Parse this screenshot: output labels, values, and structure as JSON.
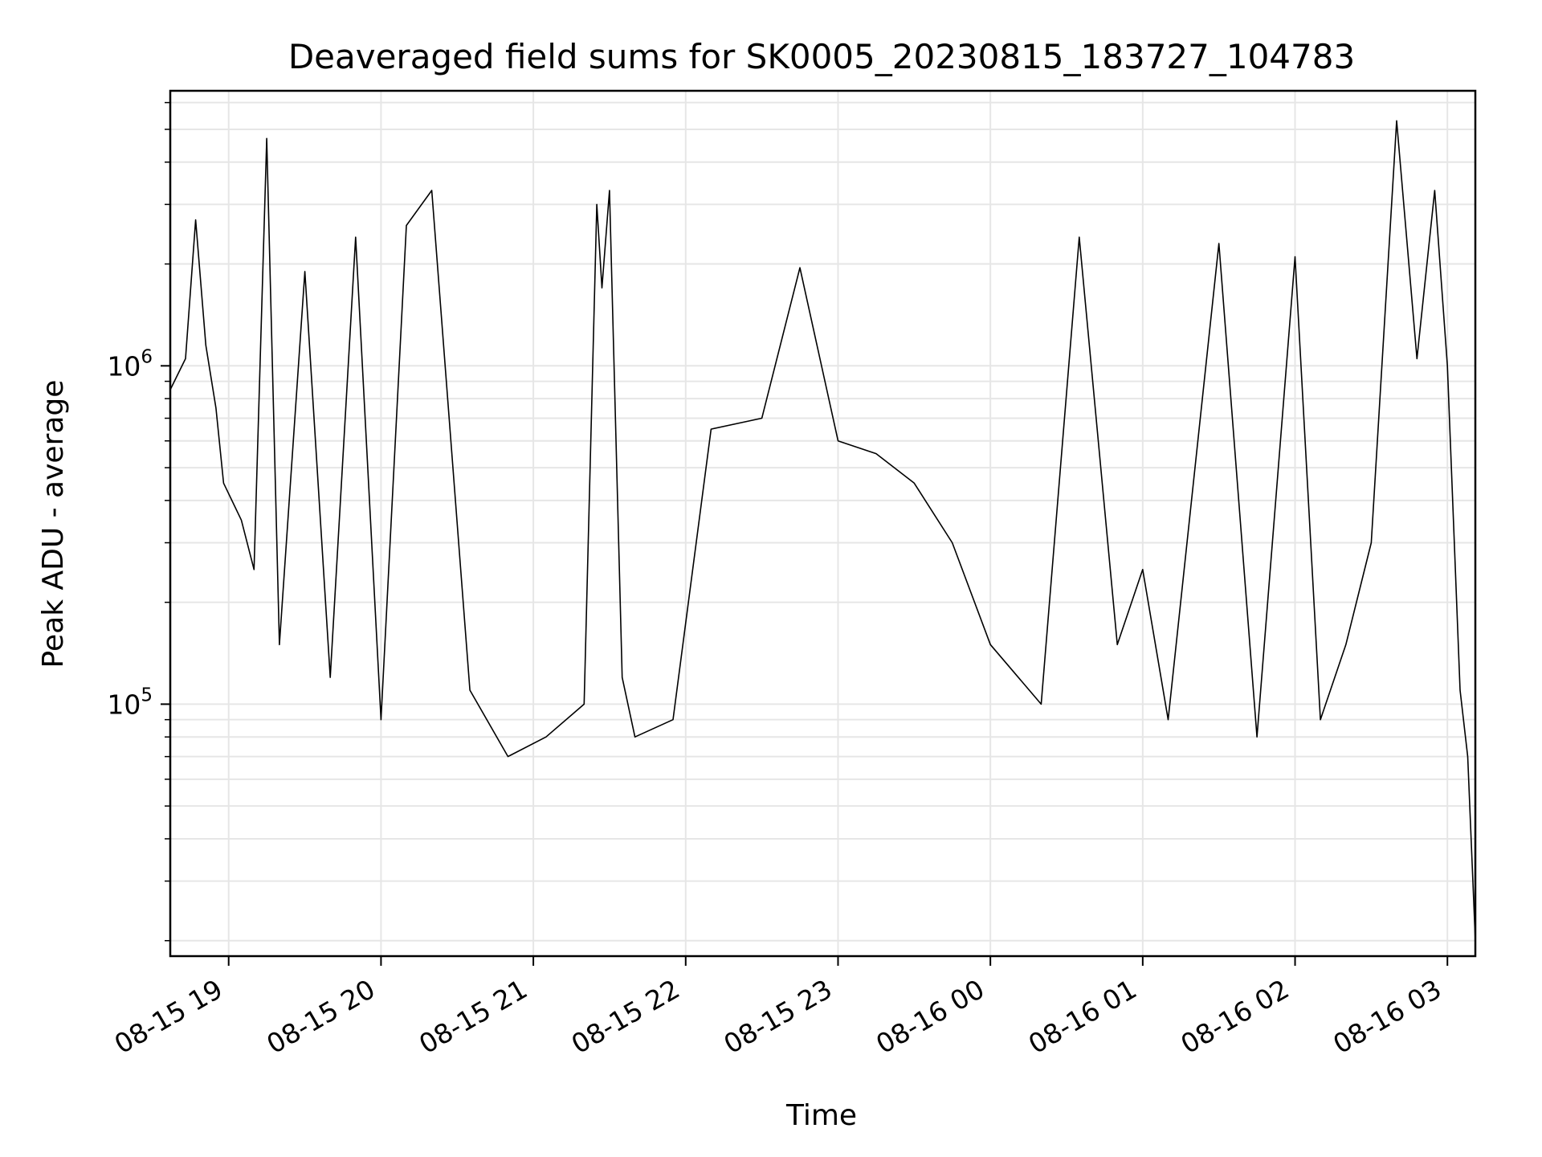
{
  "chart_data": {
    "type": "line",
    "title": "Deaveraged field sums for SK0005_20230815_183727_104783",
    "xlabel": "Time",
    "ylabel": "Peak ADU - average",
    "y_scale": "log",
    "ylim": [
      18000,
      6500000
    ],
    "x_range": [
      "2023-08-15 18:37",
      "2023-08-16 03:11"
    ],
    "x_ticks": [
      {
        "label": "08-15 19",
        "t": "2023-08-15 19:00"
      },
      {
        "label": "08-15 20",
        "t": "2023-08-15 20:00"
      },
      {
        "label": "08-15 21",
        "t": "2023-08-15 21:00"
      },
      {
        "label": "08-15 22",
        "t": "2023-08-15 22:00"
      },
      {
        "label": "08-15 23",
        "t": "2023-08-15 23:00"
      },
      {
        "label": "08-16 00",
        "t": "2023-08-16 00:00"
      },
      {
        "label": "08-16 01",
        "t": "2023-08-16 01:00"
      },
      {
        "label": "08-16 02",
        "t": "2023-08-16 02:00"
      },
      {
        "label": "08-16 03",
        "t": "2023-08-16 03:00"
      }
    ],
    "y_ticks": [
      {
        "base": "10",
        "exp": "5",
        "value": 100000
      },
      {
        "base": "10",
        "exp": "6",
        "value": 1000000
      }
    ],
    "grid": true,
    "line_color": "#000000",
    "series": [
      {
        "points": [
          [
            "2023-08-15 18:37",
            850000
          ],
          [
            "2023-08-15 18:43",
            1050000
          ],
          [
            "2023-08-15 18:47",
            2700000
          ],
          [
            "2023-08-15 18:51",
            1150000
          ],
          [
            "2023-08-15 18:55",
            750000
          ],
          [
            "2023-08-15 18:58",
            450000
          ],
          [
            "2023-08-15 19:05",
            350000
          ],
          [
            "2023-08-15 19:10",
            250000
          ],
          [
            "2023-08-15 19:15",
            4700000
          ],
          [
            "2023-08-15 19:20",
            150000
          ],
          [
            "2023-08-15 19:30",
            1900000
          ],
          [
            "2023-08-15 19:40",
            120000
          ],
          [
            "2023-08-15 19:50",
            2400000
          ],
          [
            "2023-08-15 20:00",
            90000
          ],
          [
            "2023-08-15 20:10",
            2600000
          ],
          [
            "2023-08-15 20:20",
            3300000
          ],
          [
            "2023-08-15 20:35",
            110000
          ],
          [
            "2023-08-15 20:50",
            70000
          ],
          [
            "2023-08-15 21:05",
            80000
          ],
          [
            "2023-08-15 21:20",
            100000
          ],
          [
            "2023-08-15 21:25",
            3000000
          ],
          [
            "2023-08-15 21:27",
            1700000
          ],
          [
            "2023-08-15 21:30",
            3300000
          ],
          [
            "2023-08-15 21:35",
            120000
          ],
          [
            "2023-08-15 21:40",
            80000
          ],
          [
            "2023-08-15 21:55",
            90000
          ],
          [
            "2023-08-15 22:10",
            650000
          ],
          [
            "2023-08-15 22:30",
            700000
          ],
          [
            "2023-08-15 22:45",
            1950000
          ],
          [
            "2023-08-15 23:00",
            600000
          ],
          [
            "2023-08-15 23:15",
            550000
          ],
          [
            "2023-08-15 23:30",
            450000
          ],
          [
            "2023-08-15 23:45",
            300000
          ],
          [
            "2023-08-16 00:00",
            150000
          ],
          [
            "2023-08-16 00:20",
            100000
          ],
          [
            "2023-08-16 00:35",
            2400000
          ],
          [
            "2023-08-16 00:50",
            150000
          ],
          [
            "2023-08-16 01:00",
            250000
          ],
          [
            "2023-08-16 01:10",
            90000
          ],
          [
            "2023-08-16 01:30",
            2300000
          ],
          [
            "2023-08-16 01:45",
            80000
          ],
          [
            "2023-08-16 02:00",
            2100000
          ],
          [
            "2023-08-16 02:10",
            90000
          ],
          [
            "2023-08-16 02:20",
            150000
          ],
          [
            "2023-08-16 02:30",
            300000
          ],
          [
            "2023-08-16 02:40",
            5300000
          ],
          [
            "2023-08-16 02:48",
            1050000
          ],
          [
            "2023-08-16 02:55",
            3300000
          ],
          [
            "2023-08-16 03:00",
            1000000
          ],
          [
            "2023-08-16 03:05",
            110000
          ],
          [
            "2023-08-16 03:08",
            70000
          ],
          [
            "2023-08-16 03:11",
            20000
          ]
        ]
      }
    ]
  }
}
